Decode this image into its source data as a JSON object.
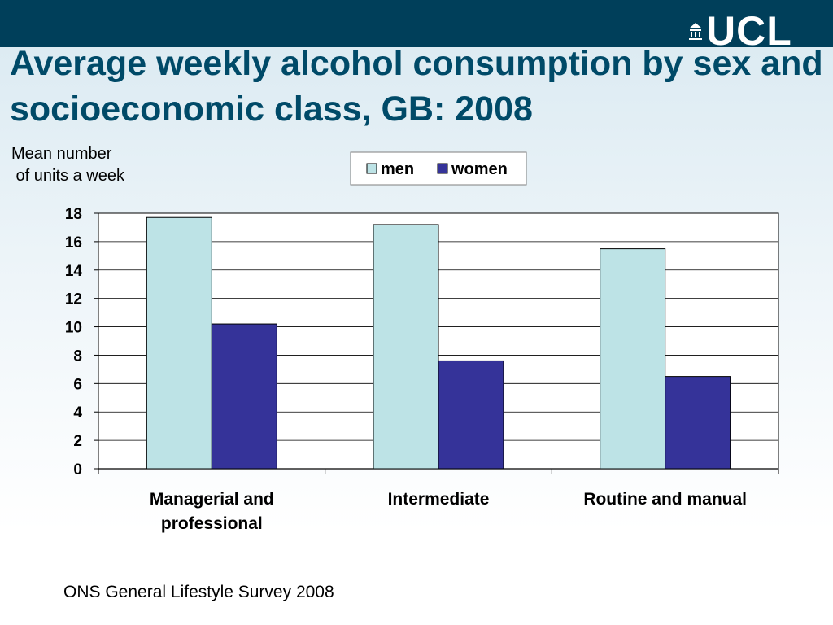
{
  "slide": {
    "title": "Average weekly alcohol consumption by sex and socioeconomic class, GB: 2008",
    "logo_text": "UCL",
    "source": "ONS General Lifestyle Survey 2008"
  },
  "icons": {
    "logo": "ucl-portico-icon"
  },
  "colors": {
    "header": "#003f5a",
    "title": "#004a68",
    "men": "#bde3e6",
    "women": "#353399"
  },
  "chart_data": {
    "type": "bar",
    "ylabel": "Mean number\n of units a week",
    "categories": [
      [
        "Managerial and",
        "professional"
      ],
      [
        "Intermediate"
      ],
      [
        "Routine and manual"
      ]
    ],
    "series": [
      {
        "name": "men",
        "values": [
          17.7,
          17.2,
          15.5
        ]
      },
      {
        "name": "women",
        "values": [
          10.2,
          7.6,
          6.5
        ]
      }
    ],
    "ylim": [
      0,
      18
    ],
    "yticks": [
      0,
      2,
      4,
      6,
      8,
      10,
      12,
      14,
      16,
      18
    ],
    "grid": true,
    "legend_position": "top-center"
  }
}
